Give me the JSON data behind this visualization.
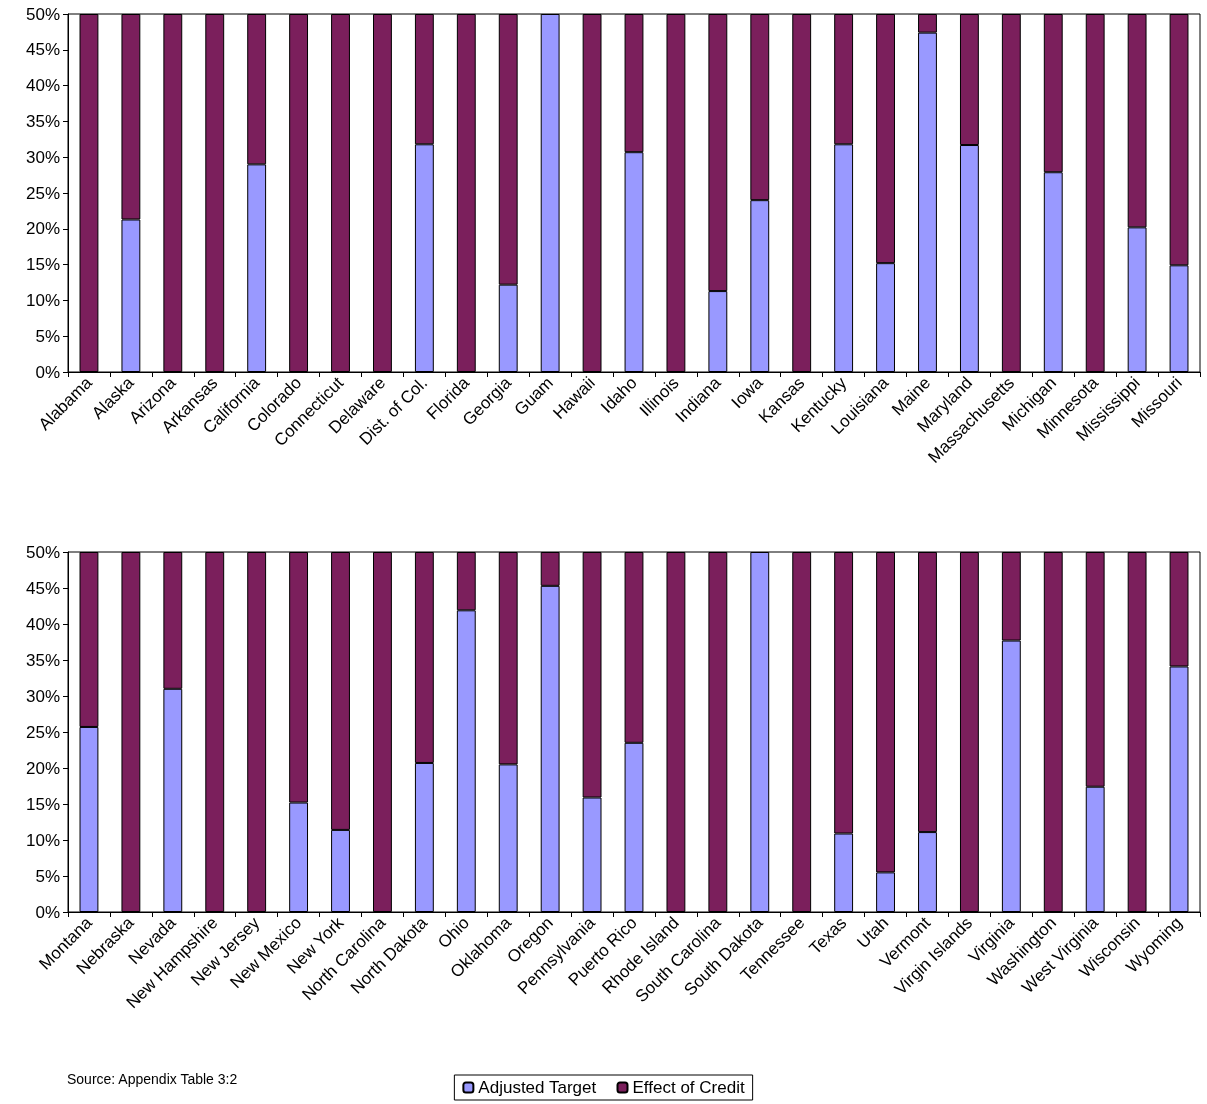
{
  "chart_data": [
    {
      "type": "bar",
      "stacked": true,
      "legend": false,
      "grid": false,
      "categories": [
        "Alabama",
        "Alaska",
        "Arizona",
        "Arkansas",
        "California",
        "Colorado",
        "Connecticut",
        "Delaware",
        "Dist. of Col.",
        "Florida",
        "Georgia",
        "Guam",
        "Hawaii",
        "Idaho",
        "Illinois",
        "Indiana",
        "Iowa",
        "Kansas",
        "Kentucky",
        "Louisiana",
        "Maine",
        "Maryland",
        "Massachusetts",
        "Michigan",
        "Minnesota",
        "Mississippi",
        "Missouri"
      ],
      "ylim": [
        0,
        50
      ],
      "yticks": [
        {
          "value": 0,
          "label": "0%"
        },
        {
          "value": 5,
          "label": "5%"
        },
        {
          "value": 10,
          "label": "10%"
        },
        {
          "value": 15,
          "label": "15%"
        },
        {
          "value": 20,
          "label": "20%"
        },
        {
          "value": 25,
          "label": "25%"
        },
        {
          "value": 30,
          "label": "30%"
        },
        {
          "value": 35,
          "label": "35%"
        },
        {
          "value": 40,
          "label": "40%"
        },
        {
          "value": 45,
          "label": "45%"
        },
        {
          "value": 50,
          "label": "50%"
        }
      ],
      "series": [
        {
          "color": "#9999ff",
          "values": [
            0,
            21.3,
            0,
            0,
            29,
            0,
            0,
            0,
            31.8,
            0,
            12.2,
            50,
            0,
            30.7,
            0,
            11.3,
            24,
            0,
            31.8,
            15.2,
            47.4,
            31.7,
            0,
            27.9,
            0,
            20.2,
            14.9
          ]
        },
        {
          "color": "#7b1f5c",
          "values": [
            50,
            28.7,
            50,
            50,
            21,
            50,
            50,
            50,
            18.2,
            50,
            37.8,
            0,
            50,
            19.3,
            50,
            38.7,
            26,
            50,
            18.2,
            34.8,
            2.6,
            18.3,
            50,
            22.1,
            50,
            29.8,
            35.1
          ]
        }
      ]
    },
    {
      "type": "bar",
      "stacked": true,
      "legend": "bottom",
      "grid": false,
      "annotations": [
        "Source: Appendix Table 3:2"
      ],
      "categories": [
        "Montana",
        "Nebraska",
        "Nevada",
        "New Hampshire",
        "New Jersey",
        "New Mexico",
        "New York",
        "North Carolina",
        "North Dakota",
        "Ohio",
        "Oklahoma",
        "Oregon",
        "Pennsylvania",
        "Puerto Rico",
        "Rhode Island",
        "South Carolina",
        "South Dakota",
        "Tennessee",
        "Texas",
        "Utah",
        "Vermont",
        "Virgin Islands",
        "Virginia",
        "Washington",
        "West Virginia",
        "Wisconsin",
        "Wyoming"
      ],
      "ylim": [
        0,
        50
      ],
      "yticks": [
        {
          "value": 0,
          "label": "0%"
        },
        {
          "value": 5,
          "label": "5%"
        },
        {
          "value": 10,
          "label": "10%"
        },
        {
          "value": 15,
          "label": "15%"
        },
        {
          "value": 20,
          "label": "20%"
        },
        {
          "value": 25,
          "label": "25%"
        },
        {
          "value": 30,
          "label": "30%"
        },
        {
          "value": 35,
          "label": "35%"
        },
        {
          "value": 40,
          "label": "40%"
        },
        {
          "value": 45,
          "label": "45%"
        },
        {
          "value": 50,
          "label": "50%"
        }
      ],
      "series": [
        {
          "name": "Adjusted Target",
          "color": "#9999ff",
          "values": [
            25.7,
            0,
            31,
            0,
            0,
            15.2,
            11.4,
            0,
            20.7,
            41.9,
            20.5,
            45.3,
            15.9,
            23.5,
            0,
            0,
            50,
            0,
            10.9,
            5.5,
            11.1,
            0,
            37.7,
            0,
            17.4,
            0,
            34.1
          ]
        },
        {
          "name": "Effect of Credit",
          "color": "#7b1f5c",
          "values": [
            24.3,
            50,
            19,
            50,
            50,
            34.8,
            38.6,
            50,
            29.3,
            8.1,
            29.5,
            4.7,
            34.1,
            26.5,
            50,
            50,
            0,
            50,
            39.1,
            44.5,
            38.9,
            50,
            12.3,
            50,
            32.6,
            50,
            15.9
          ]
        }
      ]
    }
  ]
}
